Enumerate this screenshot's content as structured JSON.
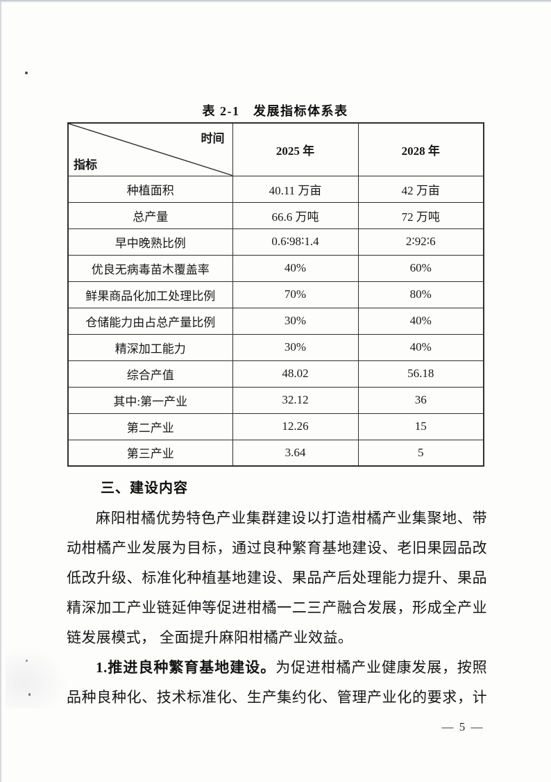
{
  "table": {
    "title": "表 2-1　发展指标体系表",
    "corner": {
      "top_right": "时间",
      "bottom_left": "指标"
    },
    "columns": [
      "2025 年",
      "2028 年"
    ],
    "rows": [
      [
        "种植面积",
        "40.11 万亩",
        "42 万亩"
      ],
      [
        "总产量",
        "66.6 万吨",
        "72 万吨"
      ],
      [
        "早中晚熟比例",
        "0.6∶98∶1.4",
        "2∶92∶6"
      ],
      [
        "优良无病毒苗木覆盖率",
        "40%",
        "60%"
      ],
      [
        "鲜果商品化加工处理比例",
        "70%",
        "80%"
      ],
      [
        "仓储能力由占总产量比例",
        "30%",
        "40%"
      ],
      [
        "精深加工能力",
        "30%",
        "40%"
      ],
      [
        "综合产值",
        "48.02",
        "56.18"
      ],
      [
        "其中:第一产业",
        "32.12",
        "36"
      ],
      [
        "第二产业",
        "12.26",
        "15"
      ],
      [
        "第三产业",
        "3.64",
        "5"
      ]
    ]
  },
  "content": {
    "heading": "三、建设内容",
    "lines": [
      {
        "text": "麻阳柑橘优势特色产业集群建设以打造柑橘产业集聚地、带",
        "indent": true,
        "fill": true
      },
      {
        "text": "动柑橘产业发展为目标，通过良种繁育基地建设、老旧果园品改",
        "fill": true
      },
      {
        "text": "低改升级、标准化种植基地建设、果品产后处理能力提升、果品",
        "fill": true
      },
      {
        "text": "精深加工产业链延伸等促进柑橘一二三产融合发展，形成全产业",
        "fill": true
      },
      {
        "text": "链发展模式， 全面提升麻阳柑橘产业效益。"
      },
      {
        "bold": "1.推进良种繁育基地建设。",
        "text": "为促进柑橘产业健康发展，按照",
        "indent": true,
        "fill": true
      },
      {
        "text": "品种良种化、技术标准化、生产集约化、管理产业化的要求，计",
        "fill": true
      }
    ]
  },
  "footer": {
    "page_number": "— 5 —"
  }
}
